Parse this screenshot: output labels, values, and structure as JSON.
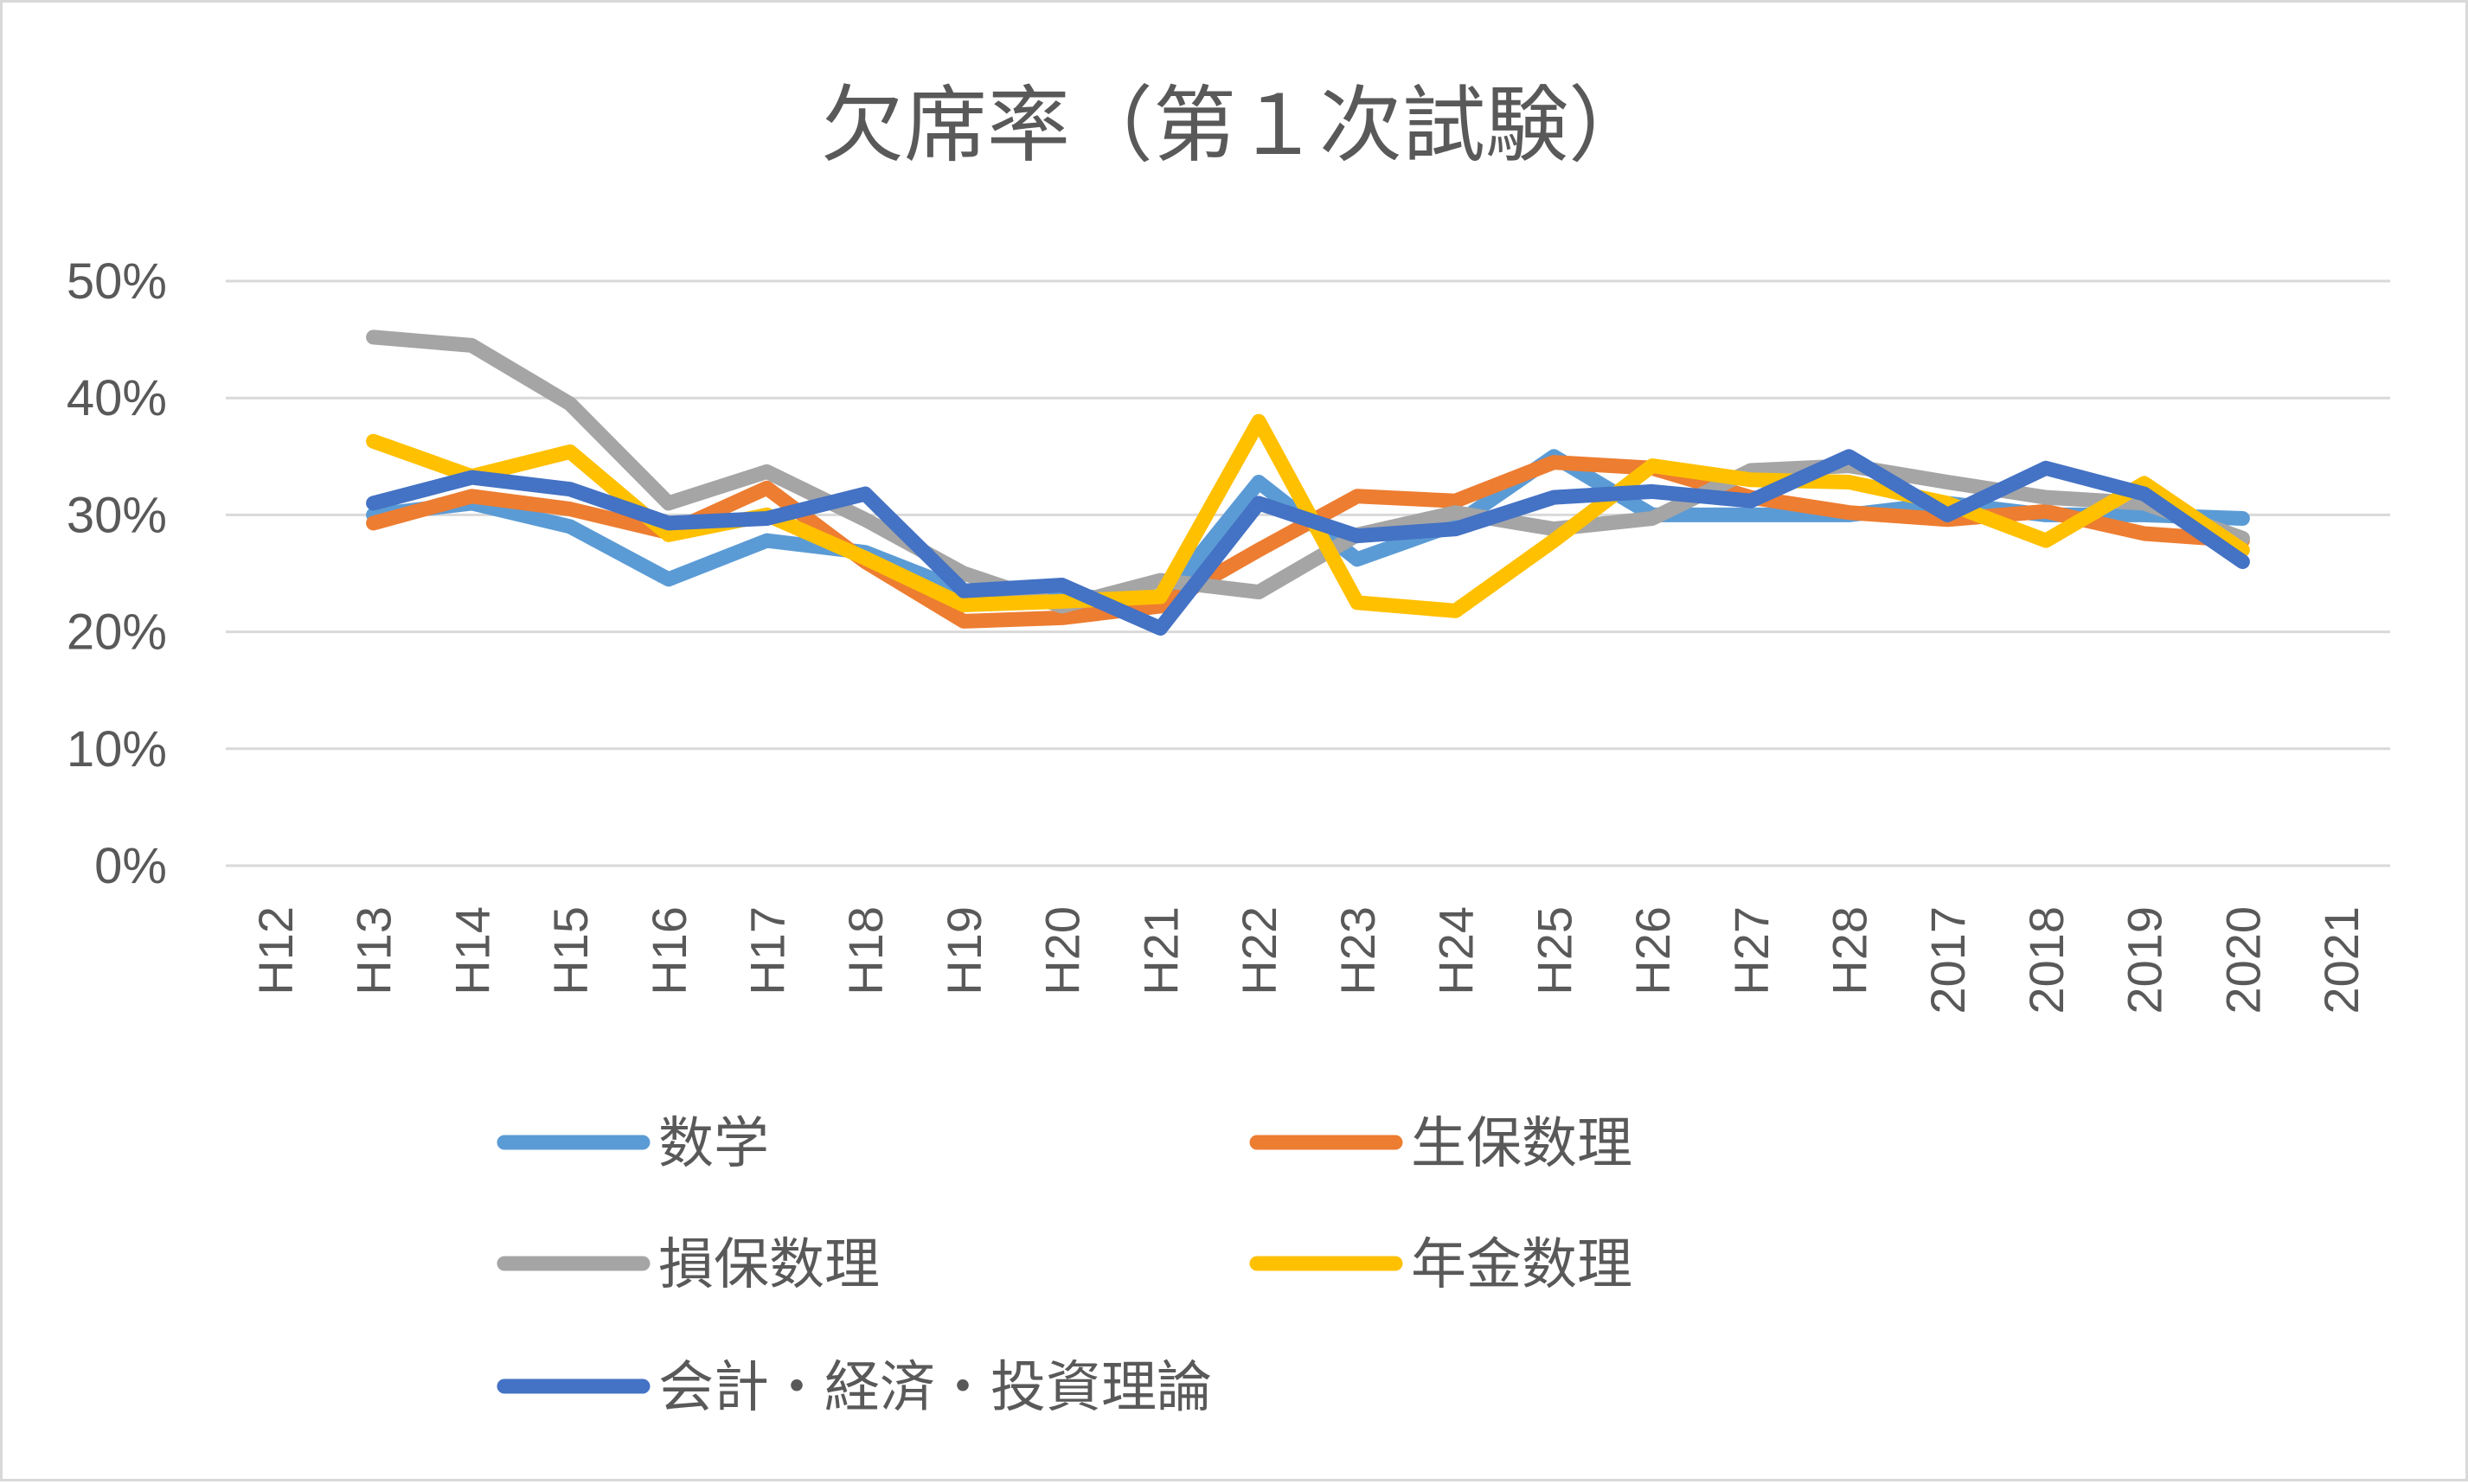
{
  "chart_data": {
    "type": "line",
    "title": "欠席率（第１次試験）",
    "xlabel": "",
    "ylabel": "",
    "categories": [
      "H12",
      "H13",
      "H14",
      "H15",
      "H16",
      "H17",
      "H18",
      "H19",
      "H20",
      "H21",
      "H22",
      "H23",
      "H24",
      "H25",
      "H26",
      "H27",
      "H28",
      "2017",
      "2018",
      "2019",
      "2020",
      "2021"
    ],
    "ylim": [
      0,
      0.5
    ],
    "yticks": [
      0,
      0.1,
      0.2,
      0.3,
      0.4,
      0.5
    ],
    "ytick_labels": [
      "0%",
      "10%",
      "20%",
      "30%",
      "40%",
      "50%"
    ],
    "grid": "horizontal",
    "legend_position": "bottom",
    "series": [
      {
        "name": "数学",
        "color": "#5b9bd5",
        "values": [
          null,
          0.3,
          0.31,
          0.29,
          0.245,
          0.278,
          0.268,
          0.235,
          0.232,
          0.224,
          0.328,
          0.262,
          0.292,
          0.35,
          0.3,
          0.3,
          0.3,
          0.31,
          0.3,
          0.3,
          0.297,
          null
        ]
      },
      {
        "name": "生保数理",
        "color": "#ed7d31",
        "values": [
          null,
          0.293,
          0.316,
          0.305,
          0.285,
          0.323,
          0.26,
          0.209,
          0.212,
          0.222,
          0.27,
          0.316,
          0.312,
          0.345,
          0.34,
          0.315,
          0.302,
          0.296,
          0.303,
          0.284,
          0.278,
          null
        ]
      },
      {
        "name": "損保数理",
        "color": "#a5a5a5",
        "values": [
          null,
          0.452,
          0.445,
          0.395,
          0.31,
          0.337,
          0.296,
          0.25,
          0.222,
          0.244,
          0.234,
          0.283,
          0.302,
          0.288,
          0.297,
          0.338,
          0.342,
          0.328,
          0.315,
          0.31,
          0.28,
          null
        ]
      },
      {
        "name": "年金数理",
        "color": "#ffc000",
        "values": [
          null,
          0.363,
          0.333,
          0.354,
          0.283,
          0.3,
          0.263,
          0.223,
          0.226,
          0.23,
          0.38,
          0.225,
          0.218,
          0.278,
          0.342,
          0.33,
          0.328,
          0.31,
          0.278,
          0.327,
          0.27,
          null
        ]
      },
      {
        "name": "会計・経済・投資理論",
        "color": "#4472c4",
        "values": [
          null,
          0.31,
          0.332,
          0.322,
          0.293,
          0.297,
          0.318,
          0.235,
          0.24,
          0.203,
          0.31,
          0.282,
          0.288,
          0.315,
          0.32,
          0.312,
          0.35,
          0.3,
          0.34,
          0.318,
          0.26,
          null
        ]
      }
    ]
  }
}
